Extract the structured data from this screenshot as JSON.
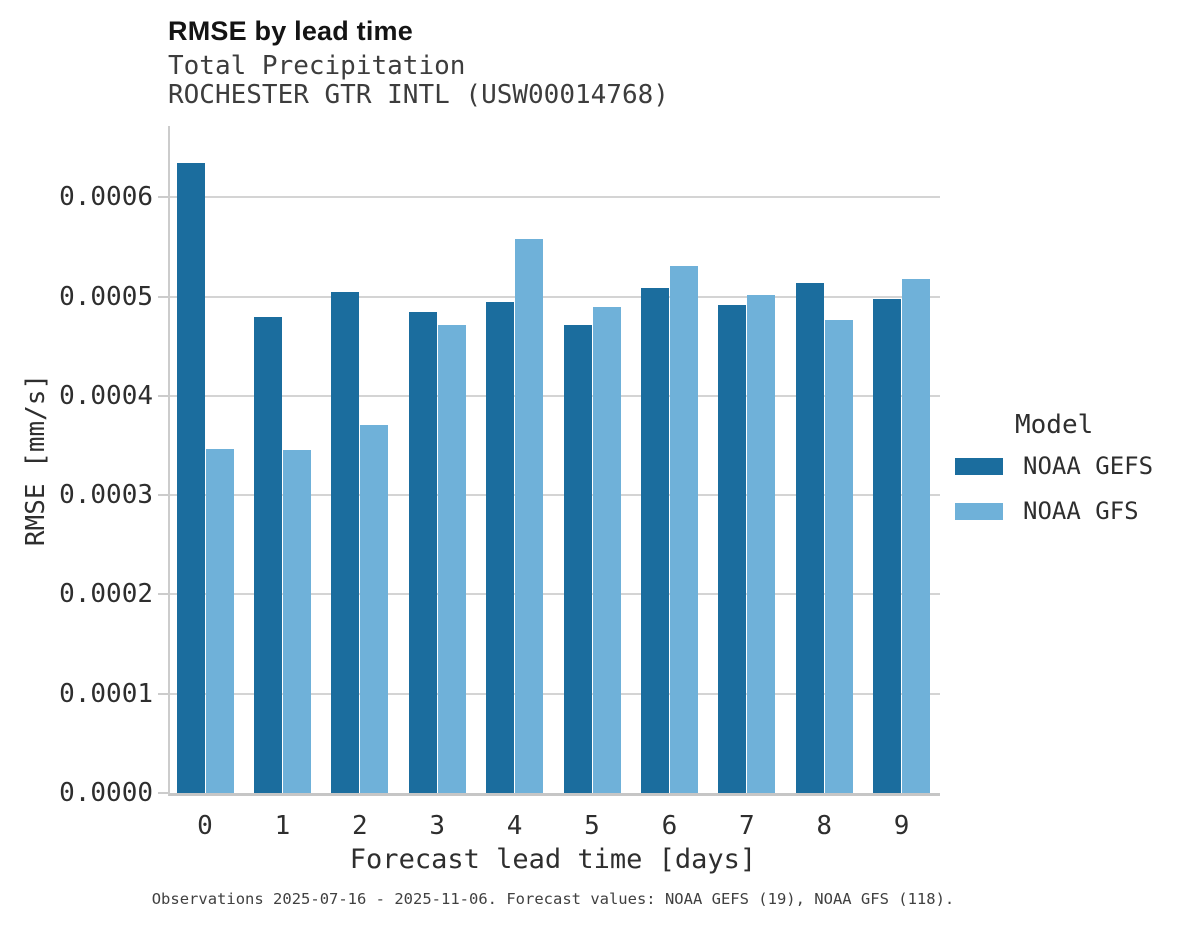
{
  "header": {
    "title": "RMSE by lead time",
    "subtitle1": "Total Precipitation",
    "subtitle2": "ROCHESTER GTR INTL (USW00014768)"
  },
  "chart_data": {
    "type": "bar",
    "title": "RMSE by lead time",
    "subtitle": [
      "Total Precipitation",
      "ROCHESTER GTR INTL (USW00014768)"
    ],
    "categories": [
      "0",
      "1",
      "2",
      "3",
      "4",
      "5",
      "6",
      "7",
      "8",
      "9"
    ],
    "series": [
      {
        "name": "NOAA GEFS",
        "color": "#1b6d9e",
        "values": [
          0.000635,
          0.00048,
          0.000505,
          0.000485,
          0.000495,
          0.000472,
          0.000509,
          0.000492,
          0.000514,
          0.000498
        ]
      },
      {
        "name": "NOAA GFS",
        "color": "#6fb1d9",
        "values": [
          0.000347,
          0.000346,
          0.000371,
          0.000472,
          0.000558,
          0.00049,
          0.000531,
          0.000502,
          0.000477,
          0.000518
        ]
      }
    ],
    "xlabel": "Forecast lead time [days]",
    "ylabel": "RMSE [mm/s]",
    "ylim": [
      0,
      0.000672
    ],
    "yticks": [
      0.0,
      0.0001,
      0.0002,
      0.0003,
      0.0004,
      0.0005,
      0.0006
    ],
    "ytick_labels": [
      "0.0000",
      "0.0001",
      "0.0002",
      "0.0003",
      "0.0004",
      "0.0005",
      "0.0006"
    ],
    "grid": true,
    "legend_position": "right"
  },
  "legend": {
    "title": "Model",
    "items": [
      {
        "label": "NOAA GEFS",
        "color": "#1b6d9e"
      },
      {
        "label": "NOAA GFS",
        "color": "#6fb1d9"
      }
    ]
  },
  "caption": "Observations 2025-07-16 - 2025-11-06. Forecast values: NOAA GEFS (19), NOAA GFS (118)."
}
